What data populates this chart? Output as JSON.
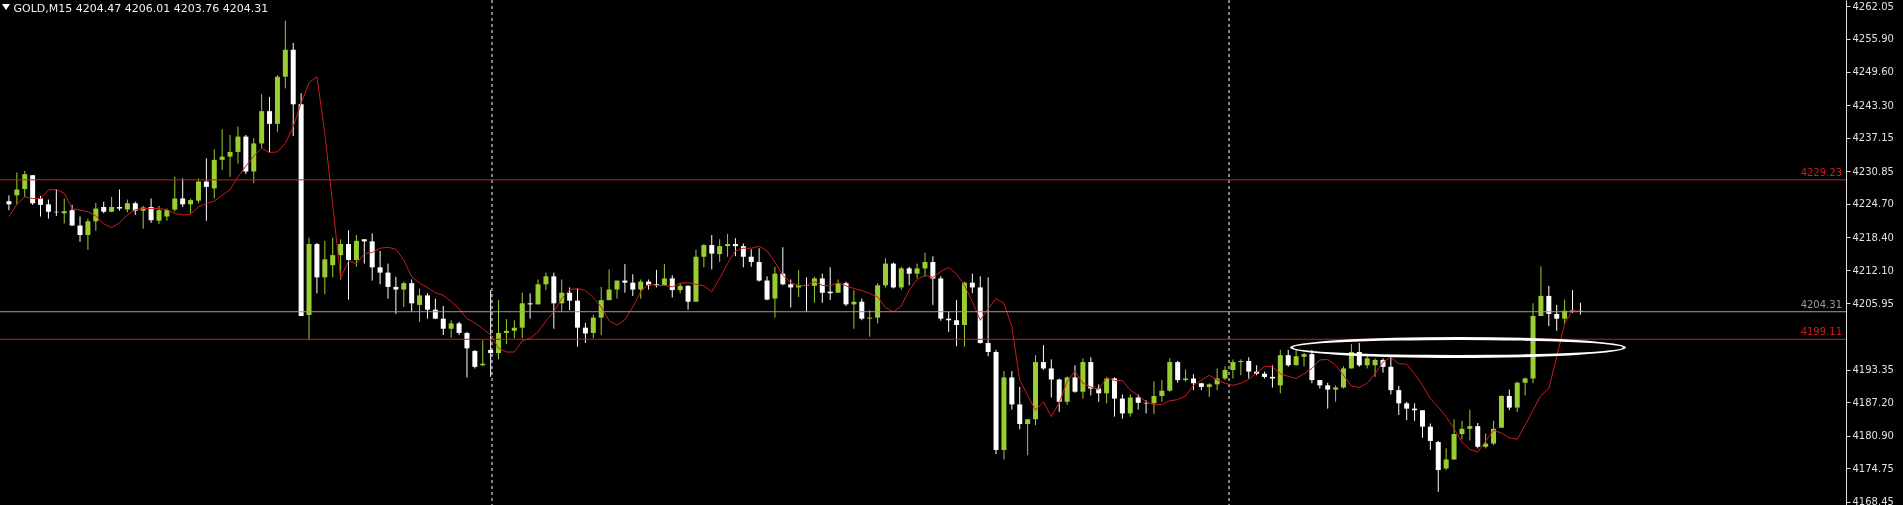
{
  "chart_data": {
    "type": "candlestick",
    "title": "GOLD,M15  4204.47 4206.01 4203.76 4204.31",
    "categories": [
      null,
      null,
      null,
      null,
      null,
      null,
      null,
      null,
      null,
      null,
      null,
      null,
      null,
      null,
      null,
      null,
      null,
      null,
      null,
      null,
      null,
      null,
      null,
      null,
      null,
      null,
      null,
      null,
      null,
      null,
      null,
      null,
      null,
      null,
      null,
      null,
      null,
      null,
      null,
      null,
      null,
      null,
      null,
      null,
      null,
      null,
      null,
      null,
      null,
      null,
      null,
      null,
      null,
      null,
      null,
      null,
      null,
      null,
      null,
      null,
      null,
      null,
      null,
      null,
      null,
      null,
      null,
      null,
      null,
      null,
      null,
      null,
      null,
      null,
      null,
      null,
      null,
      null,
      null,
      null,
      null,
      null,
      null,
      null,
      null,
      null,
      null,
      null,
      null,
      null,
      null,
      null,
      null,
      null,
      null,
      null,
      null,
      null,
      null,
      null,
      null,
      null,
      null,
      null,
      null,
      null,
      null,
      null,
      null,
      null,
      null,
      null,
      null,
      null,
      null,
      null,
      null,
      null,
      null,
      null,
      null,
      null,
      null,
      null,
      null,
      null,
      null,
      null,
      null,
      null,
      null,
      null,
      null,
      null,
      null,
      null,
      null,
      null,
      null,
      null,
      null,
      null,
      null,
      null,
      null,
      null,
      null,
      null,
      null,
      null,
      null,
      null,
      null,
      null,
      null,
      null,
      null,
      null,
      null,
      null,
      null,
      null,
      null,
      null,
      null,
      null,
      null,
      null,
      null,
      null,
      null,
      null,
      null,
      null,
      null,
      null,
      null,
      null,
      null,
      null,
      null,
      null,
      null,
      null,
      null,
      null,
      null,
      null,
      null,
      null,
      null,
      null,
      null,
      null,
      null,
      null,
      null,
      null,
      null,
      null
    ],
    "ohlc": [
      [
        4225.2,
        4226.3,
        4223.5,
        4224.6
      ],
      [
        4226.3,
        4230.6,
        4224.6,
        4227.4
      ],
      [
        4227.5,
        4230.9,
        4226.0,
        4230.3
      ],
      [
        4230.1,
        4230.1,
        4224.5,
        4224.8
      ],
      [
        4225.7,
        4226.2,
        4222.3,
        4224.5
      ],
      [
        4224.6,
        4225.5,
        4221.9,
        4223.2
      ],
      [
        4223.2,
        4227.4,
        4222.4,
        4223.1
      ],
      [
        4222.9,
        4225.7,
        4221.0,
        4223.3
      ],
      [
        4223.5,
        4224.5,
        4220.5,
        4220.6
      ],
      [
        4220.6,
        4222.3,
        4217.5,
        4218.8
      ],
      [
        4218.8,
        4221.9,
        4216.0,
        4221.4
      ],
      [
        4221.4,
        4224.9,
        4219.6,
        4223.8
      ],
      [
        4224.1,
        4225.1,
        4222.9,
        4223.2
      ],
      [
        4223.2,
        4226.0,
        4223.1,
        4224.1
      ],
      [
        4224.1,
        4227.4,
        4223.4,
        4223.8
      ],
      [
        4223.6,
        4225.5,
        4223.1,
        4224.8
      ],
      [
        4224.8,
        4225.1,
        4222.6,
        4223.4
      ],
      [
        4223.4,
        4224.3,
        4220.0,
        4224.0
      ],
      [
        4224.1,
        4225.7,
        4221.1,
        4221.6
      ],
      [
        4221.5,
        4224.3,
        4220.9,
        4223.5
      ],
      [
        4222.3,
        4223.8,
        4221.5,
        4223.5
      ],
      [
        4223.6,
        4229.8,
        4223.2,
        4225.7
      ],
      [
        4225.7,
        4229.5,
        4224.1,
        4224.6
      ],
      [
        4224.6,
        4225.7,
        4222.9,
        4225.4
      ],
      [
        4225.3,
        4229.5,
        4224.8,
        4228.9
      ],
      [
        4228.9,
        4233.3,
        4221.5,
        4227.9
      ],
      [
        4227.6,
        4235.0,
        4225.7,
        4233.0
      ],
      [
        4233.0,
        4238.8,
        4231.1,
        4233.6
      ],
      [
        4233.6,
        4237.7,
        4229.8,
        4234.5
      ],
      [
        4234.5,
        4239.3,
        4232.3,
        4237.4
      ],
      [
        4237.4,
        4237.7,
        4230.3,
        4230.8
      ],
      [
        4230.8,
        4237.1,
        4228.6,
        4236.1
      ],
      [
        4236.1,
        4245.4,
        4235.2,
        4242.2
      ],
      [
        4242.2,
        4244.9,
        4234.4,
        4239.8
      ],
      [
        4239.8,
        4249.0,
        4238.3,
        4248.7
      ],
      [
        4248.7,
        4259.3,
        4246.5,
        4253.8
      ],
      [
        4253.8,
        4255.1,
        4237.5,
        4243.5
      ],
      [
        4243.5,
        4245.6,
        4203.5,
        4203.5
      ],
      [
        4203.7,
        4218.3,
        4198.9,
        4217.1
      ],
      [
        4217.1,
        4217.3,
        4207.8,
        4210.8
      ],
      [
        4210.8,
        4217.7,
        4207.6,
        4214.2
      ],
      [
        4213.1,
        4218.3,
        4210.8,
        4215.0
      ],
      [
        4215.0,
        4218.0,
        4210.4,
        4217.1
      ],
      [
        4217.1,
        4219.7,
        4206.6,
        4214.1
      ],
      [
        4214.1,
        4218.8,
        4212.8,
        4217.7
      ],
      [
        4218.0,
        4218.0,
        4213.4,
        4217.6
      ],
      [
        4217.6,
        4219.1,
        4210.2,
        4212.7
      ],
      [
        4212.7,
        4215.8,
        4209.5,
        4211.7
      ],
      [
        4211.7,
        4213.4,
        4206.8,
        4209.0
      ],
      [
        4209.0,
        4210.9,
        4203.9,
        4208.5
      ],
      [
        4208.5,
        4210.0,
        4205.2,
        4209.7
      ],
      [
        4209.7,
        4210.4,
        4204.3,
        4205.9
      ],
      [
        4205.6,
        4208.7,
        4202.4,
        4207.4
      ],
      [
        4207.4,
        4207.8,
        4203.0,
        4204.7
      ],
      [
        4204.7,
        4206.8,
        4202.9,
        4203.0
      ],
      [
        4203.0,
        4205.4,
        4199.9,
        4201.1
      ],
      [
        4201.1,
        4202.7,
        4199.4,
        4202.1
      ],
      [
        4202.1,
        4202.4,
        4199.9,
        4200.3
      ],
      [
        4200.3,
        4200.5,
        4191.9,
        4197.4
      ],
      [
        4196.9,
        4197.1,
        4193.6,
        4193.9
      ],
      [
        4194.2,
        4198.9,
        4194.0,
        4194.5
      ],
      [
        4197.1,
        4208.4,
        4192.0,
        4196.5
      ],
      [
        4196.5,
        4206.5,
        4195.3,
        4200.3
      ],
      [
        4200.3,
        4202.9,
        4198.2,
        4200.7
      ],
      [
        4200.7,
        4202.7,
        4199.3,
        4201.3
      ],
      [
        4201.3,
        4207.9,
        4199.3,
        4205.9
      ],
      [
        4205.9,
        4207.8,
        4203.0,
        4205.7
      ],
      [
        4205.7,
        4210.4,
        4205.7,
        4209.5
      ],
      [
        4209.5,
        4211.7,
        4208.4,
        4211.0
      ],
      [
        4211.0,
        4211.7,
        4201.1,
        4205.9
      ],
      [
        4205.9,
        4210.4,
        4204.3,
        4207.9
      ],
      [
        4207.9,
        4208.9,
        4204.6,
        4206.4
      ],
      [
        4206.4,
        4208.7,
        4197.7,
        4201.3
      ],
      [
        4201.3,
        4202.2,
        4198.4,
        4200.2
      ],
      [
        4200.3,
        4203.7,
        4199.3,
        4203.2
      ],
      [
        4203.2,
        4209.0,
        4199.9,
        4206.5
      ],
      [
        4206.5,
        4212.3,
        4206.5,
        4208.5
      ],
      [
        4208.5,
        4210.2,
        4206.8,
        4210.2
      ],
      [
        4210.2,
        4213.3,
        4207.9,
        4209.8
      ],
      [
        4209.8,
        4211.4,
        4207.3,
        4208.5
      ],
      [
        4208.5,
        4210.4,
        4206.8,
        4210.0
      ],
      [
        4210.0,
        4210.4,
        4208.5,
        4209.3
      ],
      [
        4209.5,
        4212.2,
        4208.9,
        4209.3
      ],
      [
        4209.3,
        4213.3,
        4209.2,
        4210.6
      ],
      [
        4210.6,
        4211.2,
        4207.0,
        4208.4
      ],
      [
        4208.4,
        4209.7,
        4207.8,
        4209.2
      ],
      [
        4209.2,
        4209.3,
        4204.7,
        4206.2
      ],
      [
        4206.2,
        4216.0,
        4206.2,
        4214.7
      ],
      [
        4214.7,
        4217.1,
        4212.7,
        4216.9
      ],
      [
        4216.9,
        4218.8,
        4212.3,
        4215.3
      ],
      [
        4215.2,
        4218.0,
        4213.7,
        4216.7
      ],
      [
        4216.7,
        4219.0,
        4214.7,
        4217.1
      ],
      [
        4217.1,
        4218.2,
        4214.8,
        4216.7
      ],
      [
        4216.7,
        4217.2,
        4212.7,
        4214.7
      ],
      [
        4214.7,
        4216.1,
        4212.8,
        4213.7
      ],
      [
        4213.7,
        4216.3,
        4210.0,
        4210.2
      ],
      [
        4210.2,
        4211.0,
        4206.5,
        4206.6
      ],
      [
        4206.8,
        4212.8,
        4203.2,
        4211.5
      ],
      [
        4211.5,
        4216.5,
        4209.3,
        4209.5
      ],
      [
        4209.5,
        4210.4,
        4205.1,
        4208.9
      ],
      [
        4208.9,
        4212.2,
        4207.1,
        4209.3
      ],
      [
        4209.3,
        4210.8,
        4204.3,
        4209.2
      ],
      [
        4209.2,
        4210.9,
        4206.0,
        4210.6
      ],
      [
        4210.6,
        4211.5,
        4206.0,
        4207.9
      ],
      [
        4208.1,
        4212.7,
        4206.5,
        4207.8
      ],
      [
        4207.9,
        4210.4,
        4207.9,
        4209.7
      ],
      [
        4209.7,
        4210.0,
        4205.4,
        4205.7
      ],
      [
        4205.7,
        4208.4,
        4201.1,
        4206.2
      ],
      [
        4206.2,
        4206.8,
        4202.7,
        4203.0
      ],
      [
        4203.0,
        4204.6,
        4199.6,
        4203.2
      ],
      [
        4203.2,
        4209.7,
        4202.1,
        4209.3
      ],
      [
        4209.3,
        4214.4,
        4208.9,
        4213.4
      ],
      [
        4213.4,
        4213.6,
        4208.7,
        4208.9
      ],
      [
        4208.9,
        4212.8,
        4208.4,
        4212.5
      ],
      [
        4212.5,
        4212.8,
        4209.3,
        4211.5
      ],
      [
        4211.5,
        4213.4,
        4210.6,
        4212.5
      ],
      [
        4212.5,
        4215.5,
        4210.9,
        4213.7
      ],
      [
        4213.7,
        4214.8,
        4205.6,
        4210.6
      ],
      [
        4210.6,
        4211.0,
        4202.6,
        4203.0
      ],
      [
        4203.0,
        4204.3,
        4200.5,
        4202.7
      ],
      [
        4202.7,
        4206.5,
        4197.8,
        4201.8
      ],
      [
        4201.8,
        4210.0,
        4197.7,
        4209.8
      ],
      [
        4209.8,
        4211.5,
        4207.8,
        4208.9
      ],
      [
        4208.9,
        4211.0,
        4198.3,
        4198.4
      ],
      [
        4198.4,
        4210.8,
        4195.9,
        4196.7
      ],
      [
        4196.7,
        4197.1,
        4177.4,
        4178.2
      ],
      [
        4178.2,
        4193.1,
        4176.4,
        4191.9
      ],
      [
        4191.9,
        4193.1,
        4185.8,
        4186.8
      ],
      [
        4186.8,
        4190.1,
        4182.1,
        4183.1
      ],
      [
        4183.1,
        4184.0,
        4177.2,
        4184.0
      ],
      [
        4184.0,
        4196.1,
        4182.9,
        4194.8
      ],
      [
        4194.8,
        4198.0,
        4193.3,
        4193.6
      ],
      [
        4193.6,
        4195.3,
        4188.1,
        4191.5
      ],
      [
        4191.5,
        4191.7,
        4185.4,
        4187.3
      ],
      [
        4187.3,
        4192.1,
        4186.7,
        4191.9
      ],
      [
        4191.9,
        4194.2,
        4189.0,
        4189.2
      ],
      [
        4189.2,
        4195.5,
        4187.9,
        4194.8
      ],
      [
        4194.8,
        4195.7,
        4188.5,
        4189.8
      ],
      [
        4189.8,
        4190.6,
        4187.3,
        4188.9
      ],
      [
        4188.9,
        4192.0,
        4187.0,
        4191.7
      ],
      [
        4191.7,
        4191.9,
        4184.5,
        4187.9
      ],
      [
        4187.9,
        4188.7,
        4184.1,
        4185.1
      ],
      [
        4185.1,
        4188.7,
        4184.5,
        4188.1
      ],
      [
        4188.1,
        4188.7,
        4185.8,
        4187.1
      ],
      [
        4187.1,
        4187.6,
        4185.1,
        4187.0
      ],
      [
        4187.0,
        4191.2,
        4185.0,
        4188.4
      ],
      [
        4188.4,
        4191.4,
        4187.3,
        4189.4
      ],
      [
        4189.4,
        4195.5,
        4189.2,
        4194.8
      ],
      [
        4194.8,
        4195.0,
        4190.9,
        4191.4
      ],
      [
        4191.4,
        4193.4,
        4191.1,
        4191.7
      ],
      [
        4191.7,
        4192.5,
        4189.5,
        4190.8
      ],
      [
        4190.8,
        4190.9,
        4189.5,
        4190.1
      ],
      [
        4190.1,
        4190.8,
        4188.2,
        4190.6
      ],
      [
        4190.6,
        4193.6,
        4189.5,
        4191.7
      ],
      [
        4191.7,
        4194.0,
        4191.4,
        4193.3
      ],
      [
        4193.3,
        4195.3,
        4191.7,
        4194.8
      ],
      [
        4194.8,
        4195.3,
        4192.3,
        4195.0
      ],
      [
        4195.0,
        4195.7,
        4191.7,
        4193.0
      ],
      [
        4193.0,
        4194.2,
        4192.3,
        4192.6
      ],
      [
        4192.6,
        4193.0,
        4191.7,
        4192.0
      ],
      [
        4192.0,
        4194.2,
        4190.0,
        4191.7
      ],
      [
        4190.4,
        4197.1,
        4188.9,
        4196.1
      ],
      [
        4196.1,
        4197.1,
        4193.9,
        4194.2
      ],
      [
        4194.2,
        4197.2,
        4194.2,
        4195.9
      ],
      [
        4195.8,
        4196.5,
        4194.0,
        4196.3
      ],
      [
        4196.3,
        4197.1,
        4190.8,
        4191.4
      ],
      [
        4191.4,
        4191.4,
        4189.8,
        4190.4
      ],
      [
        4190.4,
        4190.9,
        4186.0,
        4189.6
      ],
      [
        4189.6,
        4190.4,
        4187.3,
        4190.0
      ],
      [
        4190.0,
        4194.0,
        4189.8,
        4193.6
      ],
      [
        4193.6,
        4198.2,
        4193.6,
        4196.7
      ],
      [
        4196.7,
        4198.4,
        4193.9,
        4194.2
      ],
      [
        4194.2,
        4196.1,
        4193.6,
        4195.5
      ],
      [
        4194.2,
        4195.5,
        4192.0,
        4195.2
      ],
      [
        4195.2,
        4195.5,
        4192.8,
        4193.9
      ],
      [
        4193.9,
        4195.8,
        4188.7,
        4189.5
      ],
      [
        4189.5,
        4190.3,
        4184.8,
        4187.0
      ],
      [
        4187.0,
        4187.3,
        4183.8,
        4186.0
      ],
      [
        4186.0,
        4187.0,
        4183.7,
        4185.7
      ],
      [
        4185.7,
        4185.7,
        4180.5,
        4182.6
      ],
      [
        4182.6,
        4183.2,
        4178.2,
        4179.9
      ],
      [
        4179.7,
        4179.9,
        4170.3,
        4174.4
      ],
      [
        4174.7,
        4178.5,
        4174.4,
        4176.4
      ],
      [
        4176.4,
        4184.0,
        4176.3,
        4181.2
      ],
      [
        4181.2,
        4183.7,
        4180.2,
        4182.2
      ],
      [
        4182.2,
        4185.8,
        4180.0,
        4182.7
      ],
      [
        4182.7,
        4183.3,
        4178.5,
        4178.8
      ],
      [
        4178.8,
        4181.3,
        4178.5,
        4179.4
      ],
      [
        4179.4,
        4183.7,
        4179.1,
        4182.2
      ],
      [
        4182.4,
        4188.5,
        4182.4,
        4188.4
      ],
      [
        4188.4,
        4189.6,
        4185.7,
        4186.2
      ],
      [
        4186.2,
        4191.1,
        4185.4,
        4190.9
      ],
      [
        4190.9,
        4191.9,
        4188.5,
        4191.7
      ],
      [
        4191.7,
        4205.9,
        4190.8,
        4203.5
      ],
      [
        4203.5,
        4212.9,
        4203.5,
        4207.3
      ],
      [
        4207.3,
        4209.2,
        4201.6,
        4203.9
      ],
      [
        4203.9,
        4205.6,
        4200.7,
        4203.0
      ],
      [
        4203.0,
        4206.6,
        4202.0,
        4204.5
      ],
      [
        4204.6,
        4208.4,
        4204.1,
        4204.5
      ],
      [
        4204.47,
        4206.01,
        4203.76,
        4204.31
      ]
    ],
    "colors": [
      "#ffffff",
      "#9acd32",
      "#9acd32",
      "#ffffff",
      "#ffffff",
      "#ffffff",
      "#ffffff",
      "#9acd32",
      "#ffffff",
      "#ffffff",
      "#9acd32",
      "#9acd32",
      "#ffffff",
      "#9acd32",
      "#ffffff",
      "#9acd32",
      "#ffffff",
      "#9acd32",
      "#ffffff",
      "#9acd32",
      "#9acd32",
      "#9acd32",
      "#ffffff",
      "#9acd32",
      "#9acd32",
      "#ffffff",
      "#9acd32",
      "#9acd32",
      "#9acd32",
      "#9acd32",
      "#ffffff",
      "#9acd32",
      "#9acd32",
      "#ffffff",
      "#9acd32",
      "#9acd32",
      "#ffffff",
      "#ffffff",
      "#9acd32",
      "#ffffff",
      "#9acd32",
      "#9acd32",
      "#9acd32",
      "#ffffff",
      "#9acd32",
      "#ffffff",
      "#ffffff",
      "#ffffff",
      "#ffffff",
      "#ffffff",
      "#9acd32",
      "#ffffff",
      "#9acd32",
      "#ffffff",
      "#ffffff",
      "#ffffff",
      "#9acd32",
      "#ffffff",
      "#ffffff",
      "#ffffff",
      "#9acd32",
      "#ffffff",
      "#9acd32",
      "#9acd32",
      "#9acd32",
      "#9acd32",
      "#ffffff",
      "#9acd32",
      "#9acd32",
      "#ffffff",
      "#9acd32",
      "#ffffff",
      "#ffffff",
      "#ffffff",
      "#9acd32",
      "#9acd32",
      "#9acd32",
      "#9acd32",
      "#ffffff",
      "#ffffff",
      "#9acd32",
      "#ffffff",
      "#ffffff",
      "#9acd32",
      "#ffffff",
      "#9acd32",
      "#ffffff",
      "#9acd32",
      "#9acd32",
      "#ffffff",
      "#9acd32",
      "#9acd32",
      "#ffffff",
      "#ffffff",
      "#ffffff",
      "#ffffff",
      "#ffffff",
      "#9acd32",
      "#ffffff",
      "#ffffff",
      "#9acd32",
      "#ffffff",
      "#9acd32",
      "#ffffff",
      "#ffffff",
      "#9acd32",
      "#ffffff",
      "#9acd32",
      "#ffffff",
      "#9acd32",
      "#9acd32",
      "#9acd32",
      "#ffffff",
      "#9acd32",
      "#ffffff",
      "#9acd32",
      "#9acd32",
      "#ffffff",
      "#ffffff",
      "#ffffff",
      "#ffffff",
      "#9acd32",
      "#ffffff",
      "#ffffff",
      "#ffffff",
      "#ffffff",
      "#9acd32",
      "#ffffff",
      "#ffffff",
      "#9acd32",
      "#9acd32",
      "#ffffff",
      "#ffffff",
      "#ffffff",
      "#9acd32",
      "#ffffff",
      "#9acd32",
      "#ffffff",
      "#ffffff",
      "#9acd32",
      "#ffffff",
      "#ffffff",
      "#9acd32",
      "#ffffff",
      "#ffffff",
      "#9acd32",
      "#9acd32",
      "#9acd32",
      "#ffffff",
      "#9acd32",
      "#ffffff",
      "#ffffff",
      "#9acd32",
      "#9acd32",
      "#9acd32",
      "#9acd32",
      "#9acd32",
      "#ffffff",
      "#ffffff",
      "#ffffff",
      "#ffffff",
      "#9acd32",
      "#ffffff",
      "#9acd32",
      "#9acd32",
      "#ffffff",
      "#ffffff",
      "#ffffff",
      "#9acd32",
      "#9acd32",
      "#9acd32",
      "#ffffff",
      "#9acd32",
      "#9acd32",
      "#ffffff",
      "#ffffff",
      "#ffffff",
      "#ffffff",
      "#ffffff",
      "#ffffff",
      "#ffffff",
      "#ffffff",
      "#9acd32",
      "#9acd32",
      "#9acd32",
      "#9acd32",
      "#ffffff",
      "#9acd32",
      "#9acd32",
      "#9acd32",
      "#ffffff",
      "#9acd32",
      "#9acd32",
      "#9acd32",
      "#9acd32",
      "#ffffff",
      "#ffffff",
      "#9acd32",
      "#ffffff",
      "#ffffff"
    ],
    "series": [
      {
        "type": "line",
        "color": "#c81e1e",
        "values": [
          4222.3,
          4224.6,
          4226.0,
          4225.7,
          4225.7,
          4227.3,
          4227.4,
          4226.7,
          4223.8,
          4223.5,
          4223.2,
          4222.4,
          4220.9,
          4220.2,
          4221.1,
          4222.6,
          4223.6,
          4223.8,
          4223.8,
          4223.8,
          4223.6,
          4222.9,
          4222.6,
          4222.7,
          4224.1,
          4224.8,
          4225.2,
          4226.3,
          4227.4,
          4229.8,
          4231.8,
          4233.7,
          4235.2,
          4234.4,
          4234.5,
          4236.1,
          4239.3,
          4243.7,
          4247.6,
          4248.7,
          4238.0,
          4224.5,
          4210.7,
          4213.9,
          4213.4,
          4215.3,
          4215.5,
          4216.3,
          4216.5,
          4216.1,
          4214.1,
          4210.9,
          4209.7,
          4208.9,
          4207.9,
          4207.4,
          4206.2,
          4204.9,
          4203.0,
          4202.2,
          4201.1,
          4199.9,
          4197.4,
          4196.7,
          4196.7,
          4198.8,
          4199.3,
          4200.5,
          4202.6,
          4204.3,
          4206.8,
          4208.5,
          4208.7,
          4208.3,
          4207.0,
          4205.2,
          4202.6,
          4201.8,
          4202.8,
          4205.2,
          4208.1,
          4209.5,
          4209.3,
          4209.3,
          4209.0,
          4209.7,
          4209.8,
          4209.5,
          4209.2,
          4208.1,
          4210.6,
          4213.4,
          4215.8,
          4216.3,
          4216.3,
          4216.7,
          4215.8,
          4213.7,
          4211.2,
          4209.8,
          4209.3,
          4209.2,
          4210.0,
          4209.3,
          4209.2,
          4209.8,
          4209.2,
          4208.7,
          4208.3,
          4207.8,
          4207.1,
          4205.1,
          4204.3,
          4205.4,
          4208.4,
          4210.4,
          4211.2,
          4210.8,
          4211.9,
          4212.7,
          4211.4,
          4209.3,
          4206.2,
          4202.7,
          4204.9,
          4206.8,
          4205.9,
          4201.5,
          4191.4,
          4188.5,
          4185.7,
          4187.3,
          4184.5,
          4187.1,
          4191.1,
          4193.1,
          4190.8,
          4190.1,
          4189.6,
          4191.9,
          4191.3,
          4191.3,
          4189.5,
          4188.5,
          4187.3,
          4186.7,
          4186.8,
          4187.5,
          4187.7,
          4188.4,
          4190.4,
          4191.4,
          4192.3,
          4191.4,
          4190.8,
          4190.4,
          4190.8,
          4191.5,
          4192.8,
          4194.0,
          4193.9,
          4192.6,
          4192.1,
          4191.7,
          4192.6,
          4193.6,
          4195.2,
          4195.3,
          4194.2,
          4192.3,
          4190.3,
          4190.0,
          4190.8,
          4192.6,
          4194.8,
          4195.7,
          4194.5,
          4194.4,
          4192.6,
          4190.4,
          4187.9,
          4186.3,
          4184.5,
          4182.2,
          4179.7,
          4178.3,
          4177.8,
          4179.9,
          4181.9,
          4181.4,
          4180.5,
          4180.2,
          4182.9,
          4185.7,
          4188.5,
          4189.8,
          4195.8,
          4202.1,
          4204.6,
          4204.3
        ]
      }
    ],
    "ylim": [
      4167.8,
      4263.2
    ],
    "yticks": [
      4262.05,
      {
        "value": 4255.9,
        "label": "4255.90"
      },
      {
        "value": 4249.6,
        "label": "4249.60"
      },
      {
        "value": 4243.3,
        "label": "4243.30"
      },
      4237.15,
      4230.85,
      {
        "value": 4224.7,
        "label": "4224.70"
      },
      {
        "value": 4218.4,
        "label": "4218.40"
      },
      {
        "value": 4212.1,
        "label": "4212.10"
      },
      4205.95,
      4193.35,
      {
        "value": 4187.2,
        "label": "4187.20"
      },
      {
        "value": 4180.9,
        "label": "4180.90"
      },
      4174.75,
      4168.45
    ],
    "ref_lines": [
      {
        "axis": "y",
        "value": 4229.23,
        "label": "4229.23",
        "color": "#c81e1e"
      },
      {
        "axis": "y",
        "value": 4204.31,
        "label": "4204.31",
        "color": "#9a9a9a"
      },
      {
        "axis": "y",
        "value": 4199.11,
        "label": "4199.11",
        "color": "#c81e1e"
      }
    ],
    "tick_labels": "y",
    "grid": false
  }
}
